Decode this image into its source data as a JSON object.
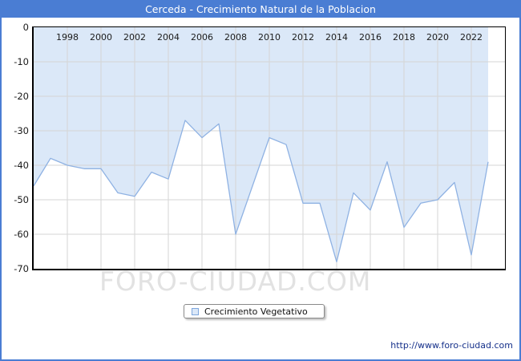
{
  "window": {
    "title": "Cerceda - Crecimiento Natural de la Poblacion"
  },
  "chart_data": {
    "type": "area",
    "title": "Cerceda - Crecimiento Natural de la Poblacion",
    "xlabel": "",
    "ylabel": "",
    "x": [
      1996,
      1997,
      1998,
      1999,
      2000,
      2001,
      2002,
      2003,
      2004,
      2005,
      2006,
      2007,
      2008,
      2009,
      2010,
      2011,
      2012,
      2013,
      2014,
      2015,
      2016,
      2017,
      2018,
      2019,
      2020,
      2021,
      2022,
      2023
    ],
    "series": [
      {
        "name": "Crecimiento Vegetativo",
        "values": [
          -46,
          -38,
          -40,
          -41,
          -41,
          -48,
          -49,
          -42,
          -44,
          -27,
          -32,
          -28,
          -60,
          -46,
          -32,
          -34,
          -51,
          -51,
          -68,
          -48,
          -53,
          -39,
          -58,
          -51,
          -50,
          -45,
          -66,
          -39
        ]
      }
    ],
    "xlim": [
      1996,
      2024
    ],
    "ylim": [
      -70,
      0
    ],
    "x_ticks": [
      1998,
      2000,
      2002,
      2004,
      2006,
      2008,
      2010,
      2012,
      2014,
      2016,
      2018,
      2020,
      2022
    ],
    "y_ticks": [
      0,
      -10,
      -20,
      -30,
      -40,
      -50,
      -60,
      -70
    ],
    "grid": true,
    "legend_position": "bottom-center",
    "colors": {
      "line": "#8fb2e3",
      "fill": "#dbe8f8",
      "grid": "#d5d5d5",
      "header": "#4a7dd3",
      "plot_bg": "#ffffff"
    }
  },
  "legend": {
    "label": "Crecimiento Vegetativo"
  },
  "watermark": {
    "text": "FORO-CIUDAD.COM"
  },
  "footer": {
    "url": "http://www.foro-ciudad.com"
  }
}
